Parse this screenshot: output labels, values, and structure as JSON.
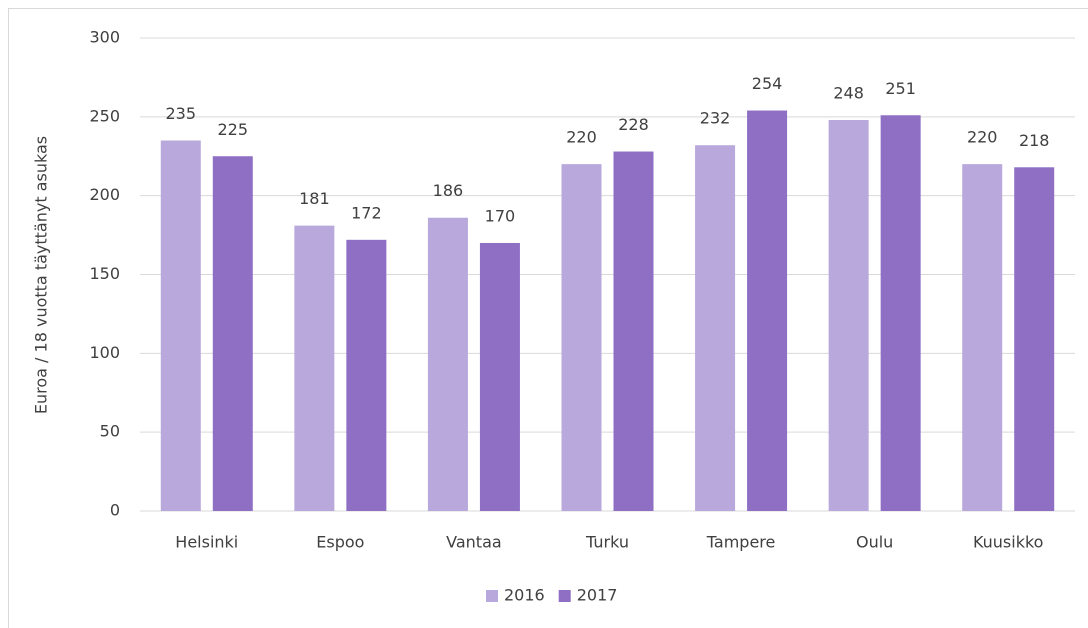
{
  "chart_data": {
    "type": "bar",
    "y_axis_label": "Euroa / 18 vuotta täyttänyt asukas",
    "categories": [
      "Helsinki",
      "Espoo",
      "Vantaa",
      "Turku",
      "Tampere",
      "Oulu",
      "Kuusikko"
    ],
    "series": [
      {
        "name": "2016",
        "color": "#b9a8db",
        "values": [
          235,
          181,
          186,
          220,
          232,
          248,
          220
        ]
      },
      {
        "name": "2017",
        "color": "#8e6fc4",
        "values": [
          225,
          172,
          170,
          228,
          254,
          251,
          218
        ]
      }
    ],
    "ylim": [
      0,
      300
    ],
    "yticks": [
      0,
      50,
      100,
      150,
      200,
      250,
      300
    ],
    "grid": true,
    "legend": "bottom"
  }
}
